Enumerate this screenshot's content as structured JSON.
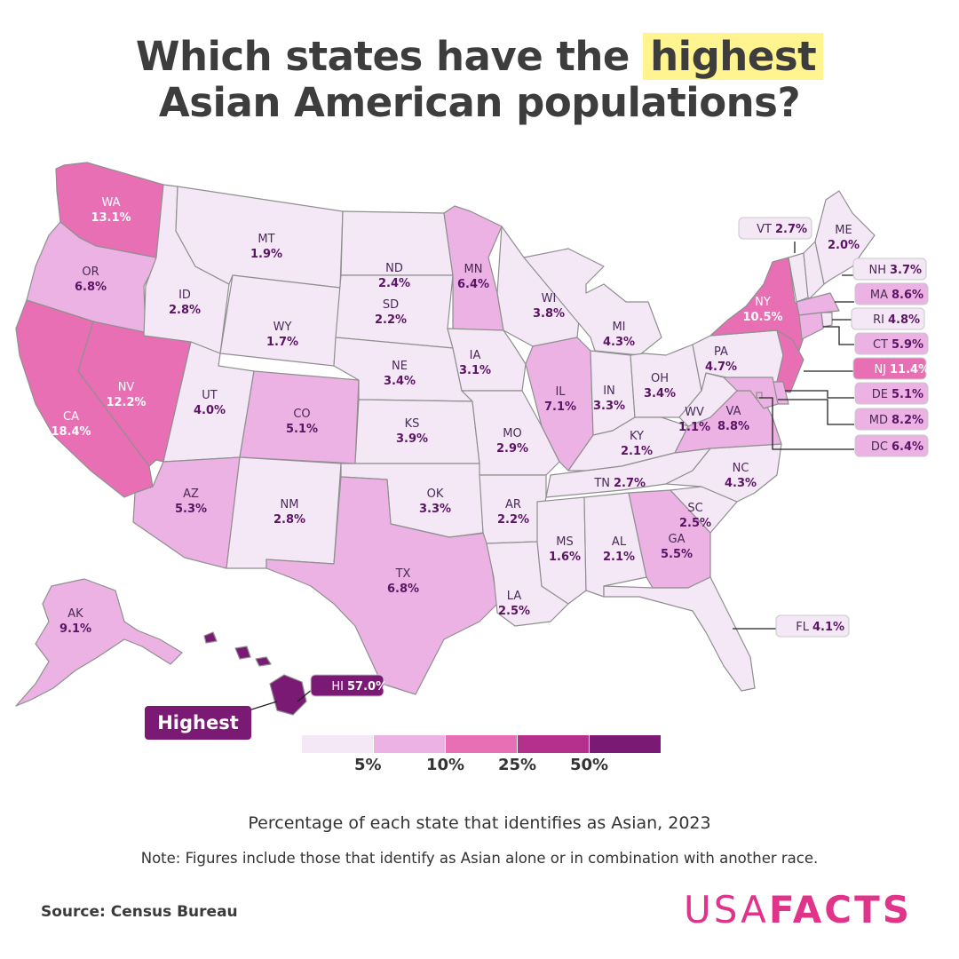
{
  "title": {
    "before": "Which states have the",
    "highlight": "highest",
    "line2": "Asian American populations?"
  },
  "subtitle": "Percentage of each state that identifies as Asian, 2023",
  "note": "Note: Figures include those that identify as Asian alone or in combination with another race.",
  "source": "Source: Census Bureau",
  "logo": {
    "light": "USA",
    "bold": "FACTS"
  },
  "highest_label": "Highest",
  "colors": {
    "c1": "#f4e8f7",
    "c2": "#ebb2e3",
    "c3": "#e96fb5",
    "c4": "#b5308c",
    "c5": "#7a1a74"
  },
  "legend": {
    "ticks": [
      "5%",
      "10%",
      "25%",
      "50%"
    ]
  },
  "chart_data": {
    "type": "choropleth",
    "unit": "%",
    "thresholds": [
      5,
      10,
      25,
      50
    ],
    "states": [
      {
        "code": "WA",
        "value": 13.1
      },
      {
        "code": "OR",
        "value": 6.8
      },
      {
        "code": "CA",
        "value": 18.4
      },
      {
        "code": "NV",
        "value": 12.2
      },
      {
        "code": "ID",
        "value": 2.8
      },
      {
        "code": "MT",
        "value": 1.9
      },
      {
        "code": "WY",
        "value": 1.7
      },
      {
        "code": "UT",
        "value": 4.0
      },
      {
        "code": "AZ",
        "value": 5.3
      },
      {
        "code": "NM",
        "value": 2.8
      },
      {
        "code": "CO",
        "value": 5.1
      },
      {
        "code": "ND",
        "value": 2.4
      },
      {
        "code": "SD",
        "value": 2.2
      },
      {
        "code": "NE",
        "value": 3.4
      },
      {
        "code": "KS",
        "value": 3.9
      },
      {
        "code": "OK",
        "value": 3.3
      },
      {
        "code": "TX",
        "value": 6.8
      },
      {
        "code": "MN",
        "value": 6.4
      },
      {
        "code": "IA",
        "value": 3.1
      },
      {
        "code": "MO",
        "value": 2.9
      },
      {
        "code": "AR",
        "value": 2.2
      },
      {
        "code": "LA",
        "value": 2.5
      },
      {
        "code": "WI",
        "value": 3.8
      },
      {
        "code": "IL",
        "value": 7.1
      },
      {
        "code": "MI",
        "value": 4.3
      },
      {
        "code": "IN",
        "value": 3.3
      },
      {
        "code": "OH",
        "value": 3.4
      },
      {
        "code": "KY",
        "value": 2.1
      },
      {
        "code": "TN",
        "value": 2.7
      },
      {
        "code": "MS",
        "value": 1.6
      },
      {
        "code": "AL",
        "value": 2.1
      },
      {
        "code": "GA",
        "value": 5.5
      },
      {
        "code": "FL",
        "value": 4.1
      },
      {
        "code": "SC",
        "value": 2.5
      },
      {
        "code": "NC",
        "value": 4.3
      },
      {
        "code": "VA",
        "value": 8.8
      },
      {
        "code": "WV",
        "value": 1.1
      },
      {
        "code": "PA",
        "value": 4.7
      },
      {
        "code": "NY",
        "value": 10.5
      },
      {
        "code": "VT",
        "value": 2.7
      },
      {
        "code": "NH",
        "value": 3.7
      },
      {
        "code": "ME",
        "value": 2.0
      },
      {
        "code": "MA",
        "value": 8.6
      },
      {
        "code": "RI",
        "value": 4.8
      },
      {
        "code": "CT",
        "value": 5.9
      },
      {
        "code": "NJ",
        "value": 11.4
      },
      {
        "code": "DE",
        "value": 5.1
      },
      {
        "code": "MD",
        "value": 8.2
      },
      {
        "code": "DC",
        "value": 6.4
      },
      {
        "code": "AK",
        "value": 9.1
      },
      {
        "code": "HI",
        "value": 57.0
      }
    ]
  }
}
